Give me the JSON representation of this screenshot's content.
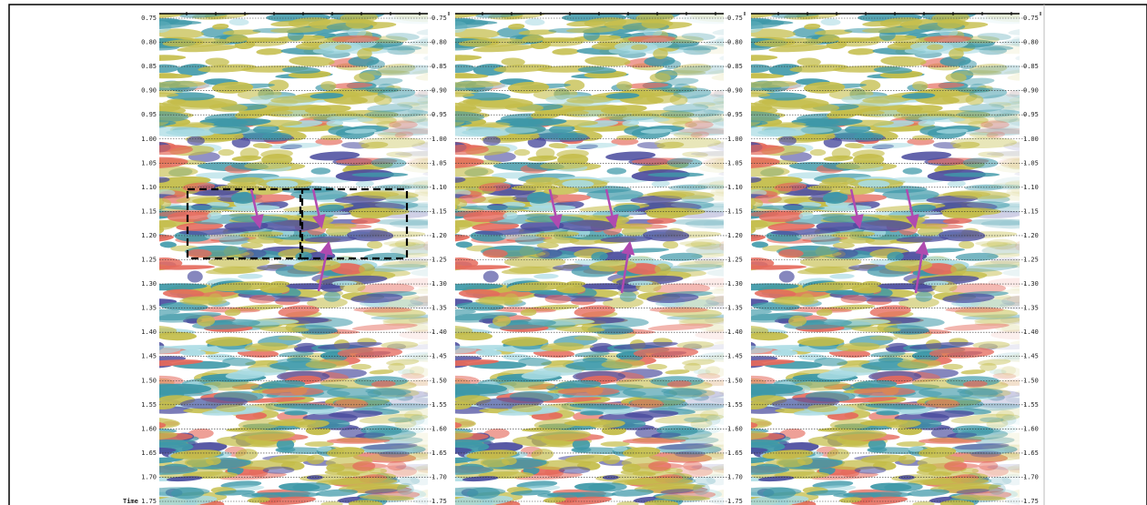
{
  "axis_label": "Time",
  "ticks": [
    "0.75",
    "0.80",
    "0.85",
    "0.90",
    "0.95",
    "1.00",
    "1.05",
    "1.10",
    "1.15",
    "1.20",
    "1.25",
    "1.30",
    "1.35",
    "1.40",
    "1.45",
    "1.50",
    "1.55",
    "1.60",
    "1.65",
    "1.70",
    "1.75"
  ]
}
